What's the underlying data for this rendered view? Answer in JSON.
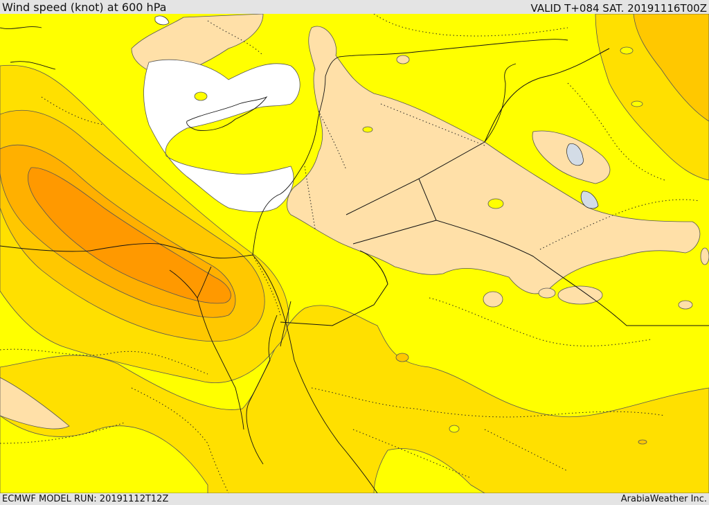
{
  "header": {
    "title": "Wind speed (knot) at 600 hPa",
    "valid": "VALID T+084 SAT. 20191116T00Z"
  },
  "footer": {
    "model_run": "ECMWF MODEL RUN: 20191112T12Z",
    "credit": "ArabiaWeather Inc."
  },
  "map": {
    "colors": {
      "calm": "#ffffff",
      "light": "#ffe0a8",
      "yellow": "#ffff00",
      "gold": "#ffe000",
      "amber": "#ffc800",
      "orange": "#ffb000",
      "dark_orange": "#ff9900",
      "contour": "#555555",
      "border": "#111111"
    }
  }
}
